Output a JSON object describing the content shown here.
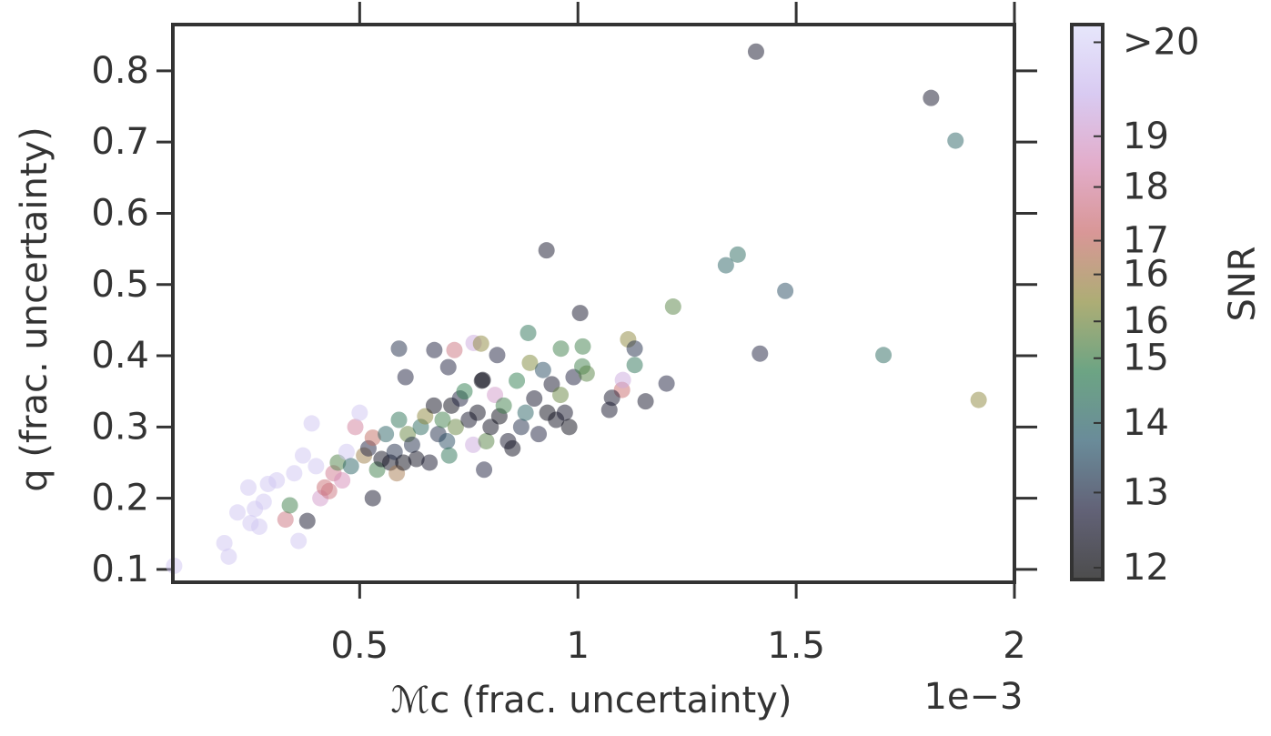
{
  "chart_data": {
    "type": "scatter",
    "xlabel": "ℳc (frac. uncertainty)",
    "ylabel": "q (frac. uncertainty)",
    "x_offset_label": "1e−3",
    "xlim": [
      0.072,
      2.0
    ],
    "ylim": [
      0.082,
      0.865
    ],
    "xticks": [
      0.5,
      1.0,
      1.5,
      2.0
    ],
    "yticks": [
      0.1,
      0.2,
      0.3,
      0.4,
      0.5,
      0.6,
      0.7,
      0.8
    ],
    "alpha": 0.5,
    "colorbar": {
      "label": "SNR",
      "log": true,
      "clim": [
        11.85,
        21.4
      ],
      "colormap": [
        "#000000",
        "#1f1f3d",
        "#2a5a6e",
        "#2e7d4f",
        "#8a8a3a",
        "#c86a6a",
        "#d68ab5",
        "#c8b4ec",
        "#dcdcfa"
      ],
      "ticks": [
        12,
        13,
        14,
        15,
        {
          "value": 15.6,
          "label": "16"
        },
        {
          "value": 16.4,
          "label": "16"
        },
        17,
        18,
        19,
        {
          "value": 21,
          "label": ">20"
        }
      ]
    },
    "x": [
      1.408,
      1.809,
      1.865,
      1.366,
      1.339,
      1.475,
      1.7,
      1.417,
      1.918,
      1.218,
      1.005,
      0.928,
      0.886,
      0.961,
      1.115,
      1.13,
      1.13,
      1.101,
      1.103,
      1.155,
      1.203,
      1.078,
      1.072,
      1.011,
      0.761,
      0.778,
      0.717,
      0.671,
      0.59,
      0.703,
      0.815,
      0.782,
      0.075,
      0.19,
      0.2,
      0.22,
      0.245,
      0.25,
      0.26,
      0.27,
      0.28,
      0.29,
      0.31,
      0.33,
      0.34,
      0.35,
      0.36,
      0.37,
      0.38,
      0.39,
      0.4,
      0.41,
      0.42,
      0.43,
      0.44,
      0.45,
      0.46,
      0.47,
      0.48,
      0.49,
      0.5,
      0.51,
      0.52,
      0.53,
      0.53,
      0.54,
      0.55,
      0.56,
      0.57,
      0.58,
      0.585,
      0.59,
      0.6,
      0.605,
      0.61,
      0.62,
      0.63,
      0.64,
      0.65,
      0.66,
      0.67,
      0.68,
      0.69,
      0.7,
      0.705,
      0.71,
      0.72,
      0.73,
      0.74,
      0.75,
      0.76,
      0.77,
      0.78,
      0.785,
      0.79,
      0.8,
      0.81,
      0.82,
      0.83,
      0.84,
      0.85,
      0.86,
      0.87,
      0.88,
      0.89,
      0.9,
      0.91,
      0.92,
      0.93,
      0.94,
      0.95,
      0.96,
      0.97,
      0.98,
      0.99,
      1.01,
      1.02
    ],
    "values": [
      0.827,
      0.762,
      0.702,
      0.542,
      0.527,
      0.491,
      0.401,
      0.403,
      0.338,
      0.469,
      0.46,
      0.548,
      0.432,
      0.41,
      0.423,
      0.41,
      0.387,
      0.352,
      0.366,
      0.336,
      0.361,
      0.341,
      0.324,
      0.413,
      0.418,
      0.417,
      0.408,
      0.408,
      0.41,
      0.384,
      0.401,
      0.366,
      0.105,
      0.137,
      0.118,
      0.18,
      0.215,
      0.165,
      0.185,
      0.16,
      0.195,
      0.22,
      0.225,
      0.17,
      0.19,
      0.235,
      0.14,
      0.26,
      0.168,
      0.305,
      0.245,
      0.2,
      0.215,
      0.21,
      0.235,
      0.25,
      0.225,
      0.265,
      0.245,
      0.3,
      0.32,
      0.26,
      0.27,
      0.2,
      0.285,
      0.24,
      0.255,
      0.29,
      0.25,
      0.265,
      0.235,
      0.31,
      0.25,
      0.37,
      0.29,
      0.275,
      0.255,
      0.3,
      0.315,
      0.25,
      0.33,
      0.29,
      0.31,
      0.28,
      0.26,
      0.33,
      0.3,
      0.34,
      0.35,
      0.31,
      0.275,
      0.32,
      0.365,
      0.24,
      0.28,
      0.3,
      0.345,
      0.315,
      0.33,
      0.28,
      0.27,
      0.365,
      0.3,
      0.32,
      0.39,
      0.34,
      0.29,
      0.38,
      0.32,
      0.36,
      0.31,
      0.345,
      0.32,
      0.3,
      0.37,
      0.385,
      0.375
    ],
    "snr": [
      12.5,
      12.5,
      14,
      14.2,
      14,
      13.5,
      14.2,
      12.8,
      16,
      15.3,
      12.5,
      12.5,
      14.5,
      15,
      16,
      13,
      14.5,
      17.2,
      19.5,
      12.5,
      12.8,
      12.5,
      12.5,
      15,
      19.5,
      16,
      17.5,
      12.8,
      13,
      12.8,
      12.8,
      12.3,
      20.5,
      20.5,
      20.5,
      20.5,
      20.5,
      20.5,
      20.5,
      20.5,
      20.5,
      20.5,
      20.5,
      17.5,
      15,
      20.5,
      20.5,
      20.5,
      12.5,
      20.5,
      20.5,
      19,
      17.3,
      17.5,
      17.8,
      15.2,
      18.5,
      20.5,
      14,
      18,
      20.5,
      16.3,
      12.8,
      12.5,
      17,
      15,
      12.3,
      14,
      12.3,
      13,
      16.5,
      14.5,
      12.2,
      12.8,
      15.5,
      13,
      12.3,
      14.2,
      16,
      12.5,
      12.3,
      13,
      15,
      13.5,
      14.5,
      12.2,
      15.5,
      12.8,
      14.8,
      12.5,
      19.5,
      12.3,
      12.2,
      12.8,
      15.3,
      12.3,
      19,
      12.2,
      15,
      12.5,
      12.3,
      14.8,
      13,
      14,
      15.8,
      12.5,
      12.8,
      13.5,
      12.2,
      12.5,
      12.3,
      15.5,
      12.5,
      12.2,
      12.8,
      15,
      15.3
    ]
  }
}
